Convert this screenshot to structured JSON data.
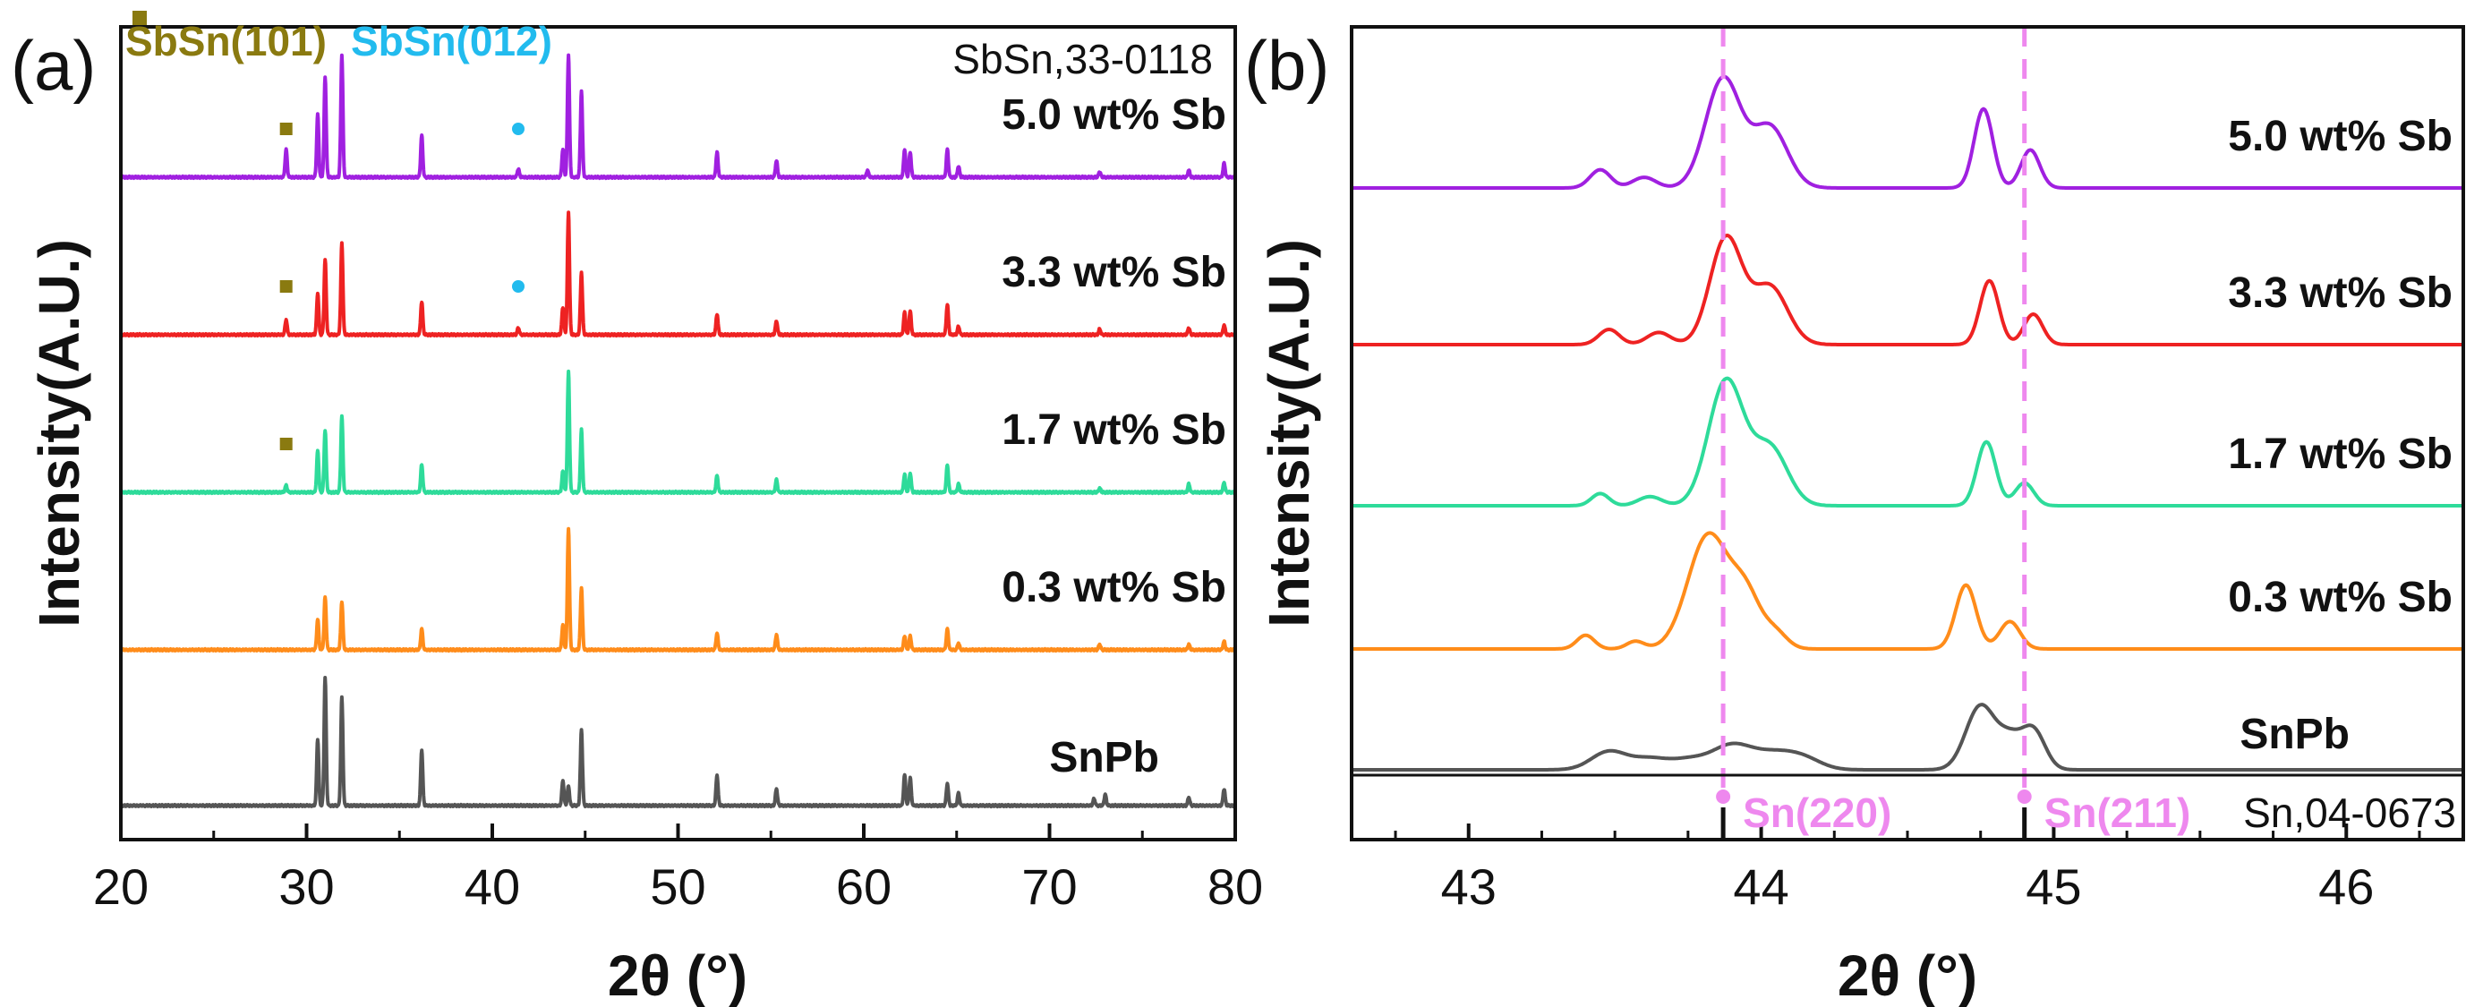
{
  "colors": {
    "SnPb": "#555555",
    "0.3 wt% Sb": "#ff8c1a",
    "1.7 wt% Sb": "#2edb9a",
    "3.3 wt% Sb": "#ee2222",
    "5.0 wt% Sb": "#a020e0",
    "sbsn101": "#8a7a10",
    "sbsn012": "#22bbee",
    "sn_ref_line": "#ee88ee"
  },
  "chart_data": [
    {
      "type": "line",
      "panel_label": "(a)",
      "xlabel": "2θ (°)",
      "ylabel": "Intensity(A.U.)",
      "xlim": [
        20,
        80
      ],
      "xticks": [
        20,
        30,
        40,
        50,
        60,
        70,
        80
      ],
      "x_tick_labels": [
        "20",
        "30",
        "40",
        "50",
        "60",
        "70",
        "80"
      ],
      "y_ticks_shown": false,
      "reference_text": "SbSn,33-0118",
      "peak_legend": [
        {
          "label": "SbSn(101)",
          "marker": "square",
          "color_key": "sbsn101"
        },
        {
          "label": "SbSn(012)",
          "marker": "dot",
          "color_key": "sbsn012"
        }
      ],
      "series": [
        {
          "name": "SnPb",
          "label": "SnPb",
          "offset": 0,
          "peaks": [
            [
              30.6,
              48
            ],
            [
              31.0,
              92
            ],
            [
              31.9,
              78
            ],
            [
              36.2,
              40
            ],
            [
              43.8,
              18
            ],
            [
              44.1,
              14
            ],
            [
              44.8,
              55
            ],
            [
              52.1,
              22
            ],
            [
              55.3,
              12
            ],
            [
              62.2,
              22
            ],
            [
              62.5,
              20
            ],
            [
              64.5,
              16
            ],
            [
              65.1,
              9
            ],
            [
              72.4,
              5
            ],
            [
              73.0,
              8
            ],
            [
              77.5,
              6
            ],
            [
              79.4,
              12
            ]
          ]
        },
        {
          "name": "0.3 wt% Sb",
          "label": "0.3 wt% Sb",
          "offset": 1,
          "peaks": [
            [
              30.6,
              22
            ],
            [
              31.0,
              38
            ],
            [
              31.9,
              35
            ],
            [
              36.2,
              15
            ],
            [
              43.8,
              18
            ],
            [
              44.1,
              88
            ],
            [
              44.8,
              45
            ],
            [
              52.1,
              12
            ],
            [
              55.3,
              11
            ],
            [
              62.2,
              10
            ],
            [
              62.5,
              10
            ],
            [
              64.5,
              15
            ],
            [
              65.1,
              5
            ],
            [
              72.7,
              4
            ],
            [
              77.5,
              4
            ],
            [
              79.4,
              6
            ]
          ]
        },
        {
          "name": "1.7 wt% Sb",
          "label": "1.7 wt% Sb",
          "offset": 2,
          "peaks": [
            [
              28.9,
              5
            ],
            [
              30.6,
              30
            ],
            [
              31.0,
              45
            ],
            [
              31.9,
              55
            ],
            [
              36.2,
              20
            ],
            [
              43.8,
              15
            ],
            [
              44.1,
              87
            ],
            [
              44.8,
              45
            ],
            [
              52.1,
              12
            ],
            [
              55.3,
              9
            ],
            [
              62.2,
              13
            ],
            [
              62.5,
              14
            ],
            [
              64.5,
              20
            ],
            [
              65.1,
              6
            ],
            [
              72.7,
              3
            ],
            [
              77.5,
              6
            ],
            [
              79.4,
              7
            ]
          ]
        },
        {
          "name": "3.3 wt% Sb",
          "label": "3.3 wt% Sb",
          "offset": 3,
          "peaks": [
            [
              28.9,
              11
            ],
            [
              30.6,
              30
            ],
            [
              31.0,
              54
            ],
            [
              31.9,
              66
            ],
            [
              36.2,
              24
            ],
            [
              41.4,
              5
            ],
            [
              43.8,
              20
            ],
            [
              44.1,
              88
            ],
            [
              44.8,
              45
            ],
            [
              52.1,
              15
            ],
            [
              55.3,
              10
            ],
            [
              62.2,
              16
            ],
            [
              62.5,
              17
            ],
            [
              64.5,
              22
            ],
            [
              65.1,
              6
            ],
            [
              72.7,
              4
            ],
            [
              77.5,
              5
            ],
            [
              79.4,
              7
            ]
          ]
        },
        {
          "name": "5.0 wt% Sb",
          "label": "5.0 wt% Sb",
          "offset": 4,
          "peaks": [
            [
              28.9,
              20
            ],
            [
              30.6,
              45
            ],
            [
              31.0,
              72
            ],
            [
              31.9,
              88
            ],
            [
              36.2,
              30
            ],
            [
              41.4,
              6
            ],
            [
              43.8,
              20
            ],
            [
              44.1,
              88
            ],
            [
              44.8,
              62
            ],
            [
              52.1,
              18
            ],
            [
              55.3,
              12
            ],
            [
              60.2,
              5
            ],
            [
              62.2,
              20
            ],
            [
              62.5,
              18
            ],
            [
              64.5,
              20
            ],
            [
              65.1,
              8
            ],
            [
              72.7,
              4
            ],
            [
              77.5,
              5
            ],
            [
              79.4,
              10
            ]
          ]
        }
      ],
      "peak_markers": [
        {
          "series": "5.0 wt% Sb",
          "x": 28.9,
          "type": "square",
          "color_key": "sbsn101"
        },
        {
          "series": "5.0 wt% Sb",
          "x": 41.4,
          "type": "dot",
          "color_key": "sbsn012"
        },
        {
          "series": "3.3 wt% Sb",
          "x": 28.9,
          "type": "square",
          "color_key": "sbsn101"
        },
        {
          "series": "3.3 wt% Sb",
          "x": 41.4,
          "type": "dot",
          "color_key": "sbsn012"
        },
        {
          "series": "1.7 wt% Sb",
          "x": 28.9,
          "type": "square",
          "color_key": "sbsn101"
        }
      ]
    },
    {
      "type": "line",
      "panel_label": "(b)",
      "xlabel": "2θ (°)",
      "ylabel": "Intensity(A.U.)",
      "xlim": [
        42.6,
        46.4
      ],
      "xticks": [
        43,
        44,
        45,
        46
      ],
      "x_tick_labels": [
        "43",
        "44",
        "45",
        "46"
      ],
      "y_ticks_shown": false,
      "reference_text": "Sn,04-0673",
      "reference_peaks": [
        {
          "label": "Sn(220)",
          "x": 43.87
        },
        {
          "label": "Sn(211)",
          "x": 44.9
        }
      ],
      "series": [
        {
          "name": "SnPb",
          "label": "SnPb",
          "offset": 0,
          "peaks": [
            [
              43.48,
              12,
              0.06
            ],
            [
              43.62,
              7,
              0.06
            ],
            [
              43.75,
              6,
              0.06
            ],
            [
              43.9,
              16,
              0.07
            ],
            [
              44.05,
              10,
              0.07
            ],
            [
              44.15,
              6,
              0.06
            ],
            [
              44.75,
              42,
              0.05
            ],
            [
              44.85,
              18,
              0.04
            ],
            [
              44.93,
              26,
              0.04
            ]
          ]
        },
        {
          "name": "0.3 wt% Sb",
          "label": "0.3 wt% Sb",
          "offset": 1,
          "peaks": [
            [
              43.4,
              9,
              0.03
            ],
            [
              43.57,
              5,
              0.03
            ],
            [
              43.82,
              75,
              0.07
            ],
            [
              43.95,
              32,
              0.05
            ],
            [
              44.05,
              10,
              0.04
            ],
            [
              44.7,
              42,
              0.035
            ],
            [
              44.85,
              18,
              0.035
            ]
          ]
        },
        {
          "name": "1.7 wt% Sb",
          "label": "1.7 wt% Sb",
          "offset": 2,
          "peaks": [
            [
              43.45,
              8,
              0.03
            ],
            [
              43.62,
              6,
              0.04
            ],
            [
              43.88,
              82,
              0.06
            ],
            [
              44.03,
              38,
              0.06
            ],
            [
              44.77,
              42,
              0.032
            ],
            [
              44.9,
              15,
              0.032
            ]
          ]
        },
        {
          "name": "3.3 wt% Sb",
          "label": "3.3 wt% Sb",
          "offset": 3,
          "peaks": [
            [
              43.48,
              10,
              0.035
            ],
            [
              43.65,
              8,
              0.04
            ],
            [
              43.88,
              70,
              0.055
            ],
            [
              44.03,
              38,
              0.06
            ],
            [
              44.78,
              42,
              0.032
            ],
            [
              44.93,
              20,
              0.032
            ]
          ]
        },
        {
          "name": "5.0 wt% Sb",
          "label": "5.0 wt% Sb",
          "offset": 4,
          "peaks": [
            [
              43.45,
              12,
              0.035
            ],
            [
              43.6,
              7,
              0.04
            ],
            [
              43.87,
              72,
              0.06
            ],
            [
              44.03,
              40,
              0.06
            ],
            [
              44.76,
              52,
              0.032
            ],
            [
              44.92,
              25,
              0.032
            ]
          ]
        }
      ]
    }
  ]
}
